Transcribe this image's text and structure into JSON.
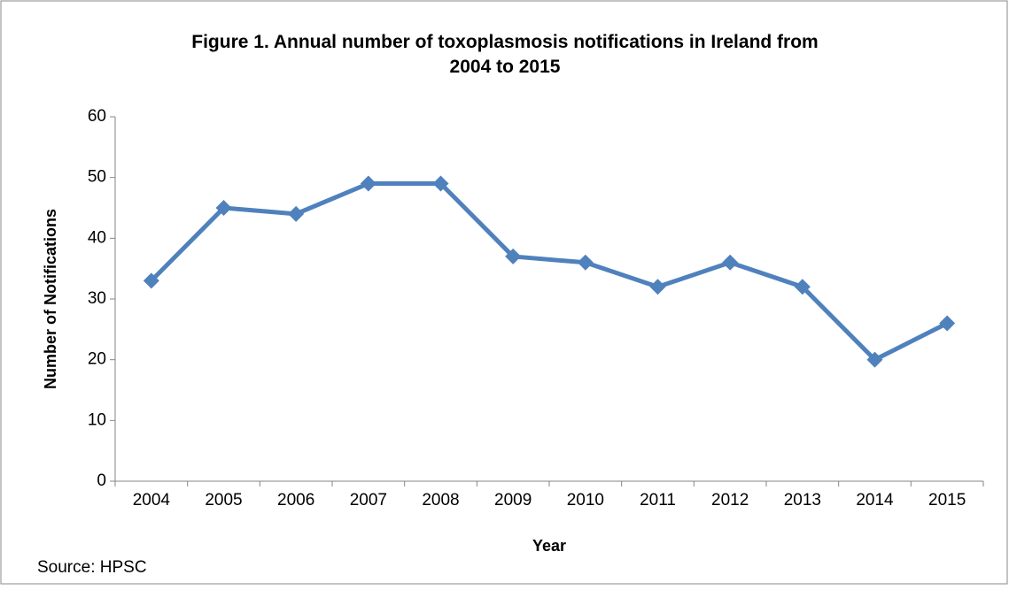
{
  "chart_data": {
    "type": "line",
    "title": "Figure 1. Annual number of toxoplasmosis notifications in Ireland from 2004 to 2015",
    "x_label": "Year",
    "y_label": "Number of Notifications",
    "source": "Source: HPSC",
    "categories": [
      "2004",
      "2005",
      "2006",
      "2007",
      "2008",
      "2009",
      "2010",
      "2011",
      "2012",
      "2013",
      "2014",
      "2015"
    ],
    "values": [
      33,
      45,
      44,
      49,
      49,
      37,
      36,
      32,
      36,
      32,
      20,
      26
    ],
    "color": "#4f81bd",
    "ylim": [
      0,
      60
    ],
    "yticks": [
      0,
      10,
      20,
      30,
      40,
      50,
      60
    ],
    "grid": false
  }
}
